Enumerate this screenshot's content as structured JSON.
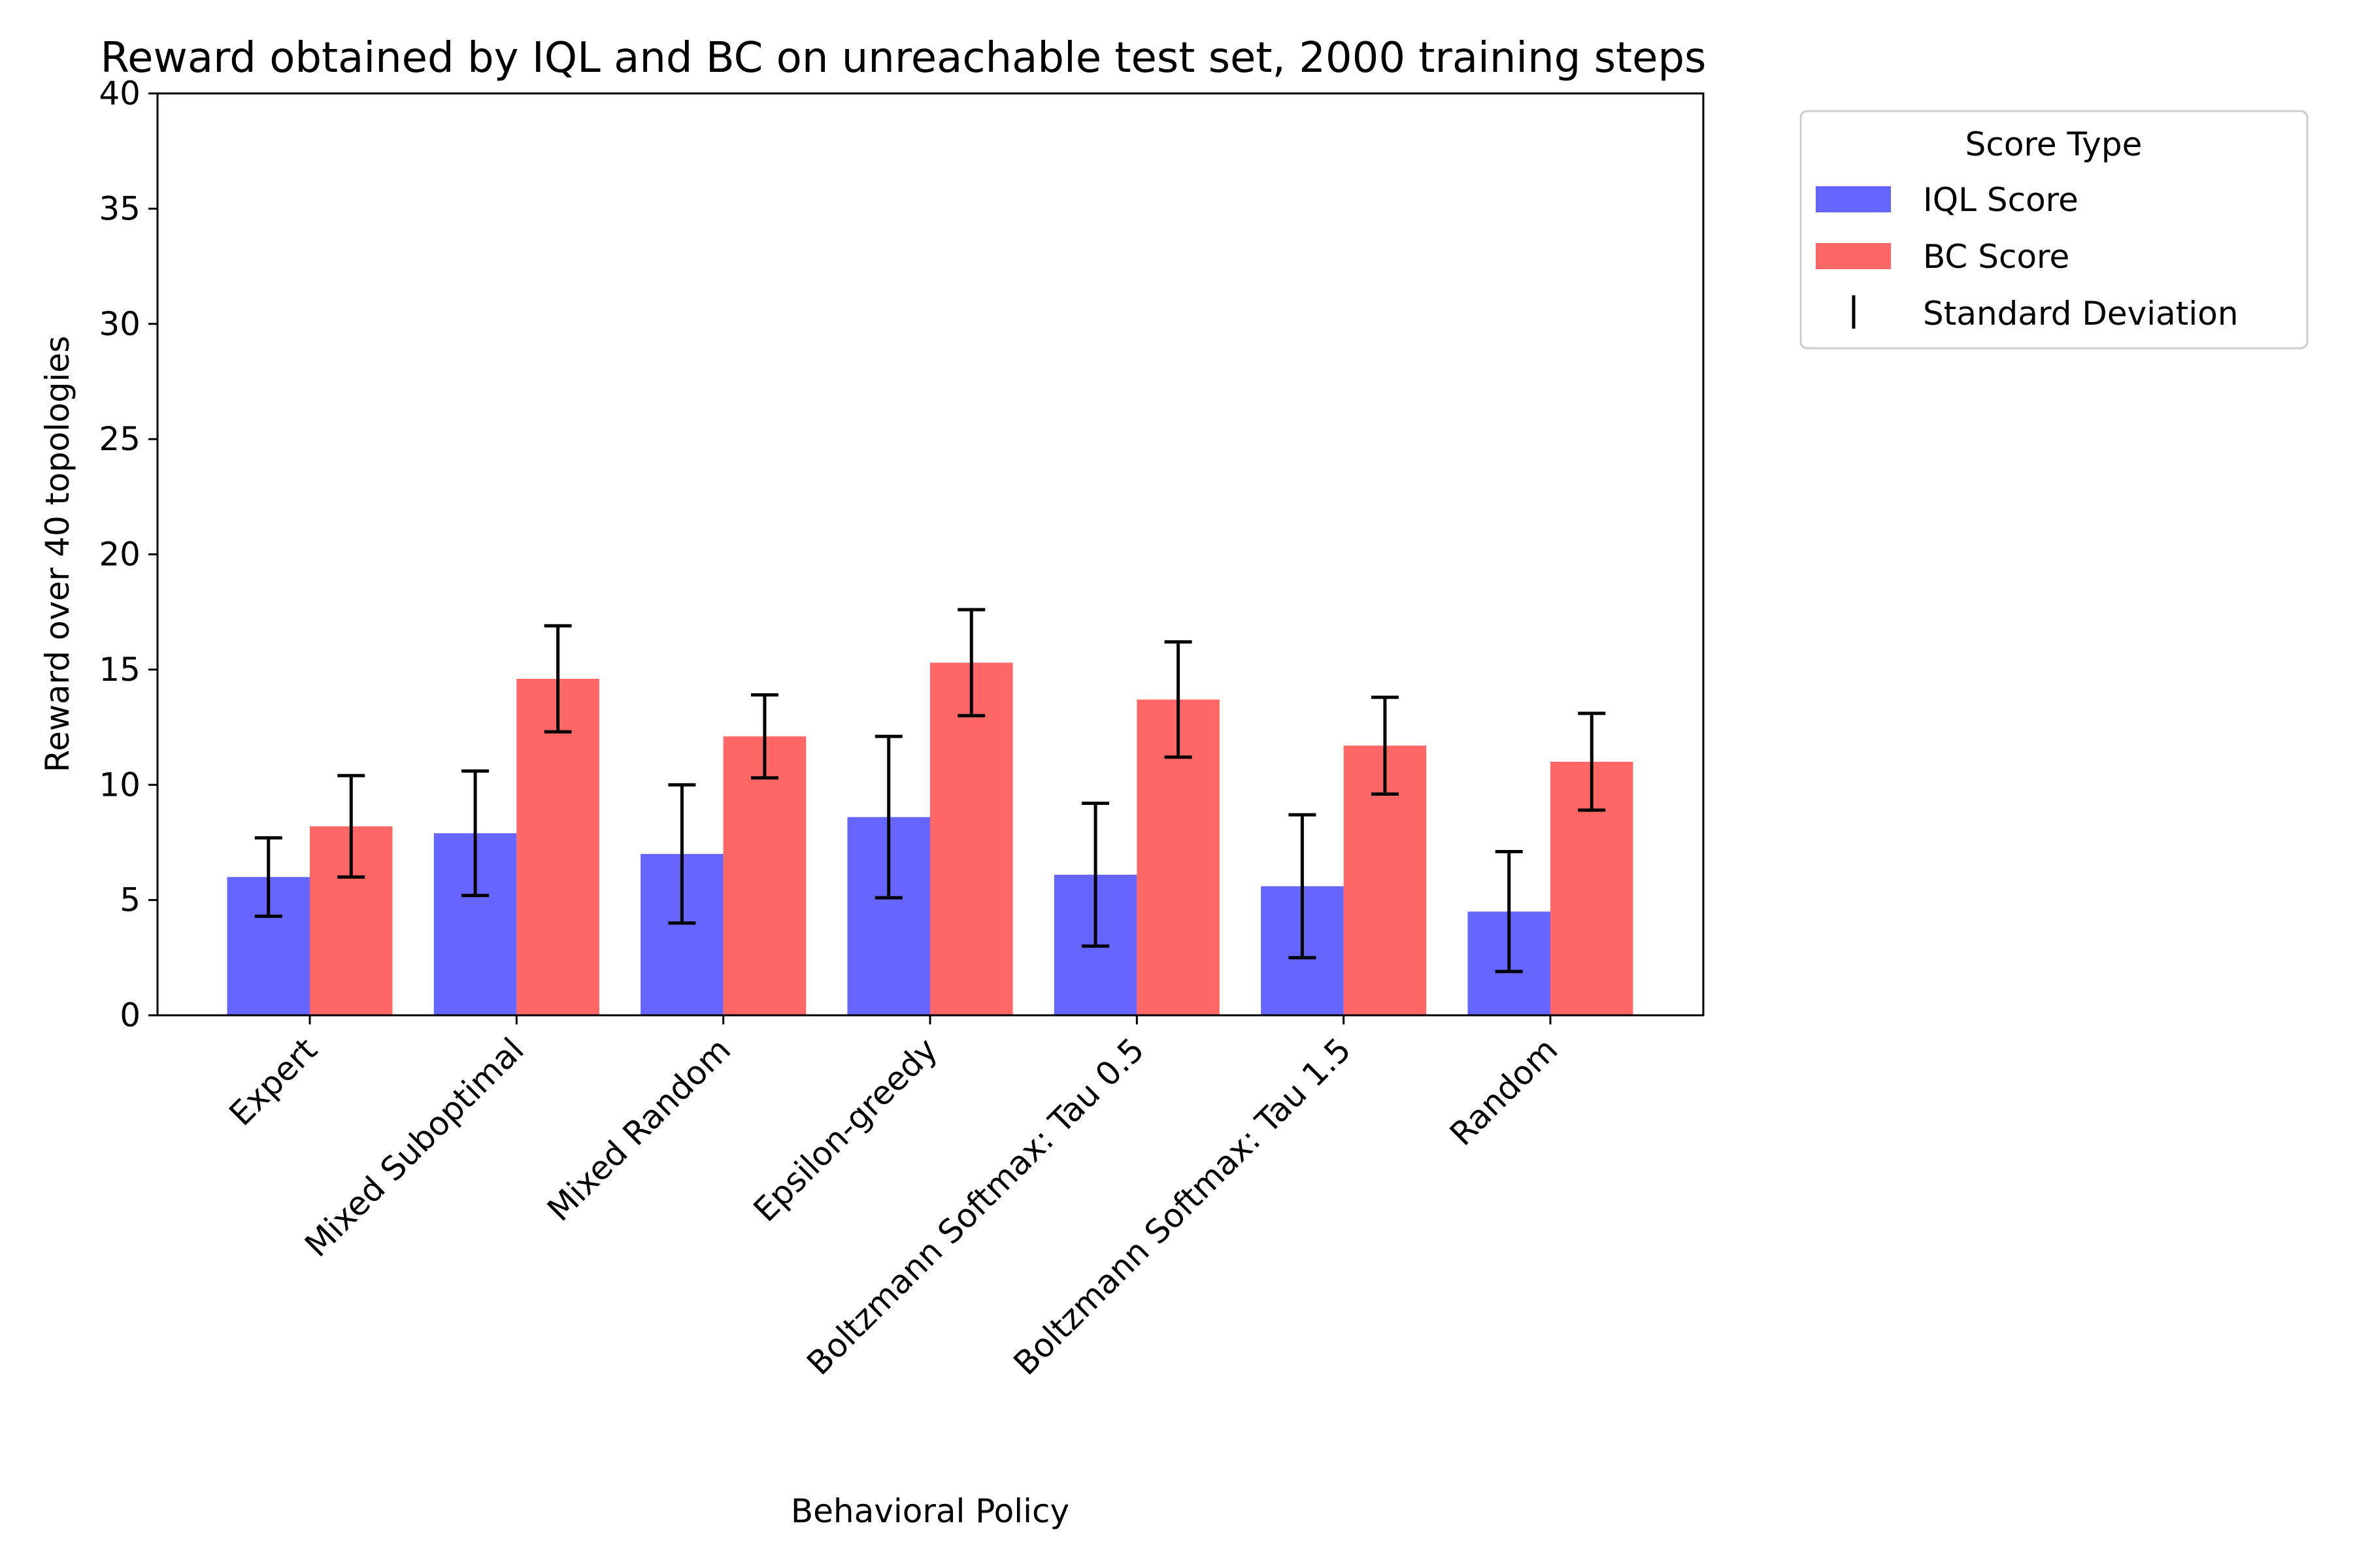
{
  "chart_data": {
    "type": "bar",
    "title": "Reward obtained by IQL and BC on unreachable test set, 2000 training steps",
    "xlabel": "Behavioral Policy",
    "ylabel": "Reward over 40 topologies",
    "ylim": [
      0,
      40
    ],
    "yticks": [
      0,
      5,
      10,
      15,
      20,
      25,
      30,
      35,
      40
    ],
    "grid": false,
    "categories": [
      "Expert",
      "Mixed Suboptimal",
      "Mixed Random",
      "Epsilon-greedy",
      "Boltzmann Softmax: Tau 0.5",
      "Boltzmann Softmax: Tau 1.5",
      "Random"
    ],
    "series": [
      {
        "name": "IQL Score",
        "color": "#6666ff",
        "values": [
          6.0,
          7.9,
          7.0,
          8.6,
          6.1,
          5.6,
          4.5
        ],
        "std": [
          1.7,
          2.7,
          3.0,
          3.5,
          3.1,
          3.1,
          2.6
        ]
      },
      {
        "name": "BC Score",
        "color": "#ff6666",
        "values": [
          8.2,
          14.6,
          12.1,
          15.3,
          13.7,
          11.7,
          11.0
        ],
        "std": [
          2.2,
          2.3,
          1.8,
          2.3,
          2.5,
          2.1,
          2.1
        ]
      }
    ],
    "errorbar_color": "#000000",
    "legend": {
      "title": "Score Type",
      "placement": "outside upper right",
      "entries": [
        "IQL Score",
        "BC Score",
        "Standard Deviation"
      ]
    }
  }
}
